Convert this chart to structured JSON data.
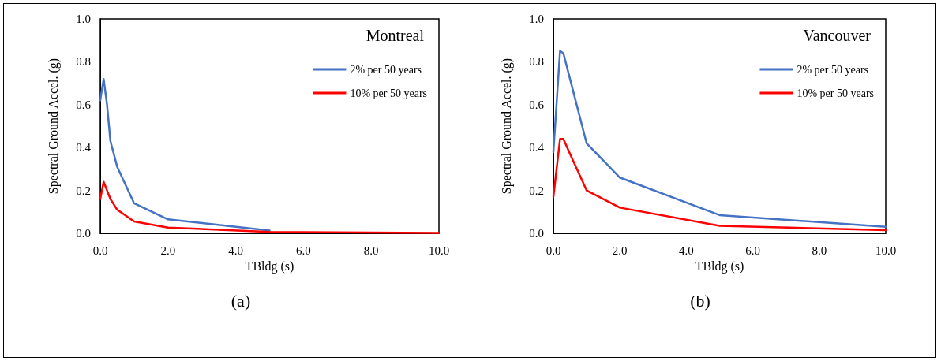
{
  "chart_data": [
    {
      "type": "line",
      "title": "Montreal",
      "xlabel": "TBldg (s)",
      "ylabel": "Spectral Ground Accel. (g)",
      "annotations": [
        "(a)"
      ],
      "x": [
        0,
        0.1,
        0.2,
        0.3,
        0.5,
        1,
        2,
        5,
        10
      ],
      "series": [
        {
          "name": "2% per 50 years",
          "color": "#4472c4",
          "values": [
            0.62,
            0.72,
            0.6,
            0.43,
            0.31,
            0.14,
            0.065,
            0.013,
            null
          ]
        },
        {
          "name": "10% per 50 years",
          "color": "#ff0000",
          "values": [
            0.16,
            0.24,
            0.2,
            0.16,
            0.11,
            0.055,
            0.027,
            0.006,
            0.002
          ]
        }
      ],
      "xlim": [
        0,
        10
      ],
      "xticks": [
        {
          "value": 0,
          "label": "0.0"
        },
        {
          "value": 2,
          "label": "2.0"
        },
        {
          "value": 4,
          "label": "4.0"
        },
        {
          "value": 6,
          "label": "6.0"
        },
        {
          "value": 8,
          "label": "8.0"
        },
        {
          "value": 10,
          "label": "10.0"
        }
      ],
      "ylim": [
        0,
        1
      ],
      "yticks": [
        {
          "value": 0,
          "label": "0.0"
        },
        {
          "value": 0.2,
          "label": "0.2"
        },
        {
          "value": 0.4,
          "label": "0.4"
        },
        {
          "value": 0.6,
          "label": "0.6"
        },
        {
          "value": 0.8,
          "label": "0.8"
        },
        {
          "value": 1,
          "label": "1.0"
        }
      ],
      "grid": false,
      "legend": "top right",
      "marker": "none",
      "line_style": "solid"
    },
    {
      "type": "line",
      "title": "Vancouver",
      "xlabel": "TBldg (s)",
      "ylabel": "Spectral Ground Accel. (g)",
      "annotations": [
        "(b)"
      ],
      "x": [
        0,
        0.2,
        0.3,
        0.5,
        1,
        2,
        5,
        10
      ],
      "series": [
        {
          "name": "2% per 50 years",
          "color": "#4472c4",
          "values": [
            0.38,
            0.85,
            0.84,
            0.72,
            0.42,
            0.26,
            0.085,
            0.03
          ]
        },
        {
          "name": "10% per 50 years",
          "color": "#ff0000",
          "values": [
            0.17,
            0.44,
            0.44,
            0.37,
            0.2,
            0.12,
            0.035,
            0.015
          ]
        }
      ],
      "xlim": [
        0,
        10
      ],
      "xticks": [
        {
          "value": 0,
          "label": "0.0"
        },
        {
          "value": 2,
          "label": "2.0"
        },
        {
          "value": 4,
          "label": "4.0"
        },
        {
          "value": 6,
          "label": "6.0"
        },
        {
          "value": 8,
          "label": "8.0"
        },
        {
          "value": 10,
          "label": "10.0"
        }
      ],
      "ylim": [
        0,
        1
      ],
      "yticks": [
        {
          "value": 0,
          "label": "0.0"
        },
        {
          "value": 0.2,
          "label": "0.2"
        },
        {
          "value": 0.4,
          "label": "0.4"
        },
        {
          "value": 0.6,
          "label": "0.6"
        },
        {
          "value": 0.8,
          "label": "0.8"
        },
        {
          "value": 1,
          "label": "1.0"
        }
      ],
      "grid": false,
      "legend": "top right",
      "marker": "none",
      "line_style": "solid"
    }
  ]
}
